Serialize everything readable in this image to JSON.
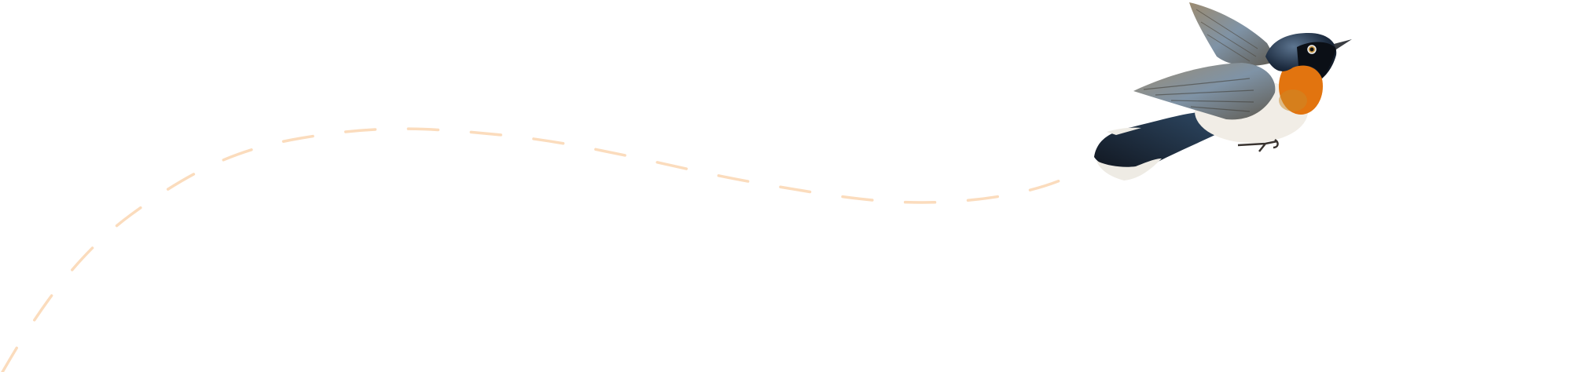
{
  "illustration": {
    "subject": "bird-illustration",
    "colors": {
      "flight_path": "#fbdcbd",
      "background": "#ffffff",
      "throat": "#e2740f",
      "head": "#1c2a3e",
      "wing": "#8a8f92",
      "tail": "#1a2433",
      "belly": "#f1ede6"
    }
  }
}
